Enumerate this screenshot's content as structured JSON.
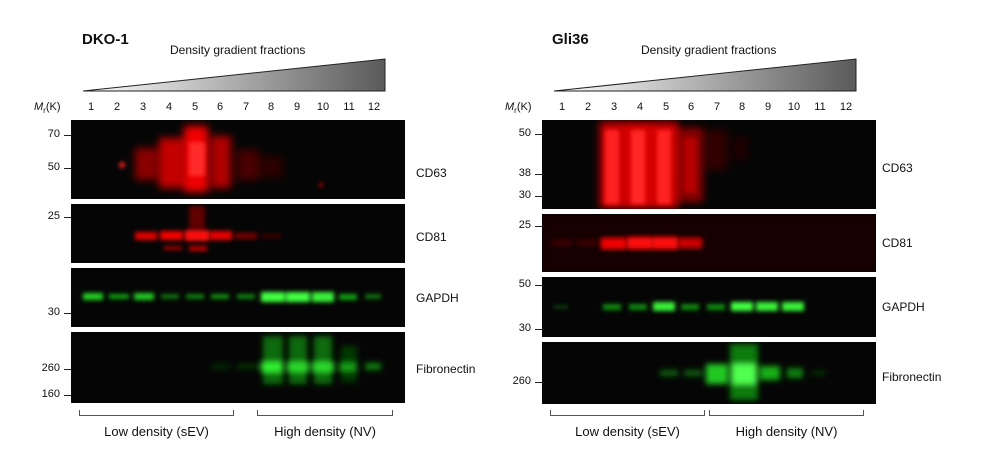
{
  "figure": {
    "mr_label": {
      "m": "M",
      "r": "r",
      "k": "(K)"
    },
    "panels": [
      {
        "title": "DKO-1",
        "gradient_title": "Density gradient fractions",
        "lanes": [
          "1",
          "2",
          "3",
          "4",
          "5",
          "6",
          "7",
          "8",
          "9",
          "10",
          "11",
          "12"
        ],
        "blots": [
          {
            "label": "CD63",
            "color": "red",
            "markers": [
              "70",
              "50"
            ]
          },
          {
            "label": "CD81",
            "color": "red",
            "markers": [
              "25"
            ]
          },
          {
            "label": "GAPDH",
            "color": "green",
            "markers": [
              "30"
            ]
          },
          {
            "label": "Fibronectin",
            "color": "green",
            "markers": [
              "260",
              "160"
            ]
          }
        ],
        "groups": [
          {
            "label": "Low density (sEV)"
          },
          {
            "label": "High density (NV)"
          }
        ]
      },
      {
        "title": "Gli36",
        "gradient_title": "Density gradient fractions",
        "lanes": [
          "1",
          "2",
          "3",
          "4",
          "5",
          "6",
          "7",
          "8",
          "9",
          "10",
          "11",
          "12"
        ],
        "blots": [
          {
            "label": "CD63",
            "color": "red",
            "markers": [
              "50",
              "38",
              "30"
            ]
          },
          {
            "label": "CD81",
            "color": "red",
            "markers": [
              "25"
            ]
          },
          {
            "label": "GAPDH",
            "color": "green",
            "markers": [
              "50",
              "30"
            ]
          },
          {
            "label": "Fibronectin",
            "color": "green",
            "markers": [
              "260"
            ]
          }
        ],
        "groups": [
          {
            "label": "Low density (sEV)"
          },
          {
            "label": "High density (NV)"
          }
        ]
      }
    ]
  }
}
